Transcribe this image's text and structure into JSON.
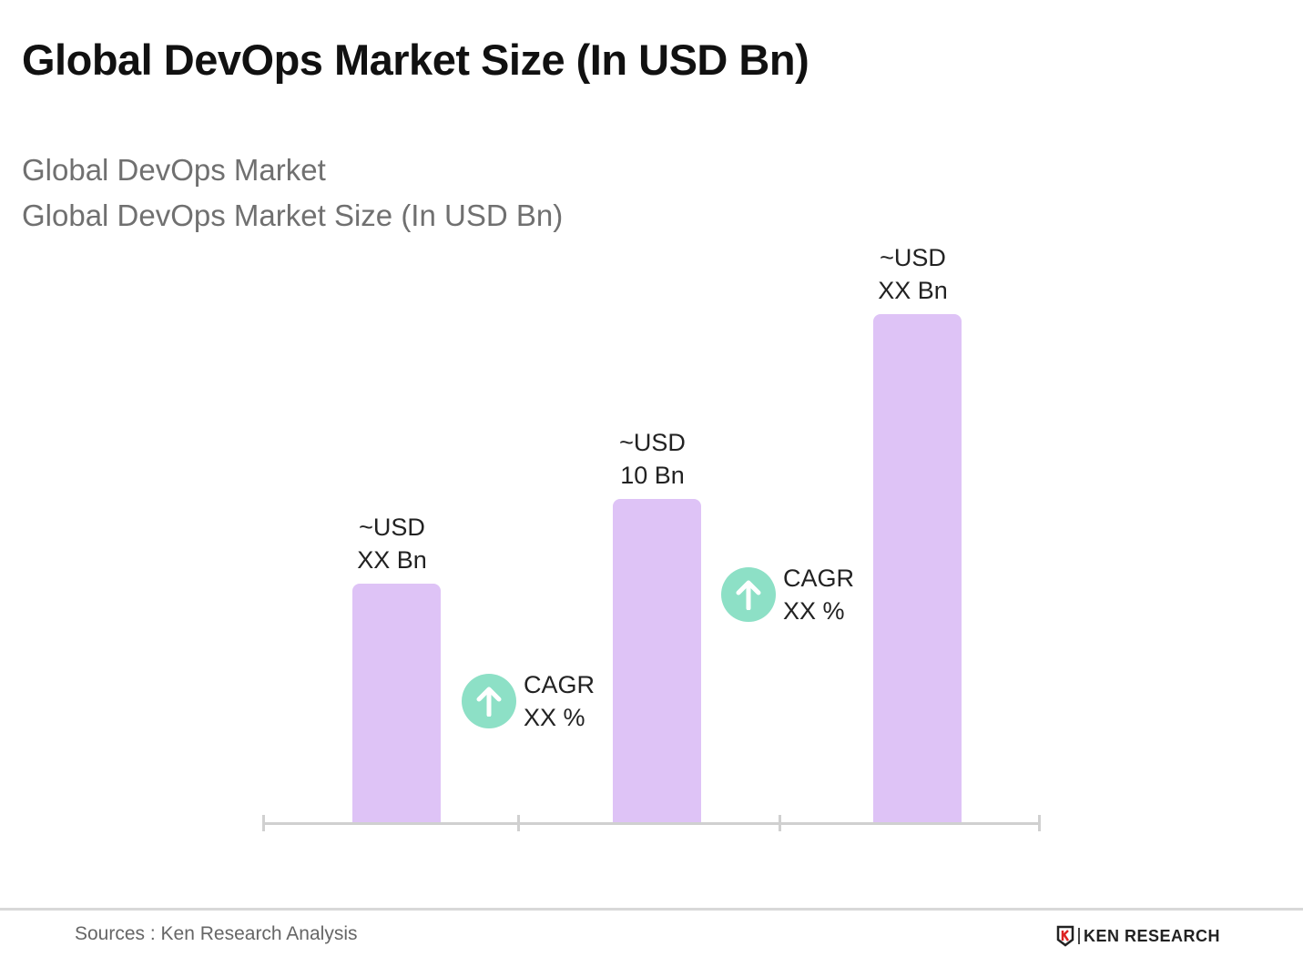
{
  "title": "Global DevOps Market Size (In USD Bn)",
  "subtitle_lines": [
    "Global DevOps Market",
    "Global DevOps Market Size (In USD Bn)"
  ],
  "chart_data": {
    "type": "bar",
    "title": "Global DevOps Market Size (In USD Bn)",
    "categories": [
      "",
      "",
      ""
    ],
    "values": [
      7.4,
      10,
      15.7
    ],
    "data_labels": [
      {
        "line1": "~USD",
        "line2": "XX Bn"
      },
      {
        "line1": "~USD",
        "line2": "10 Bn"
      },
      {
        "line1": "~USD",
        "line2": "XX Bn"
      }
    ],
    "annotations": [
      {
        "line1": "CAGR",
        "line2": "XX %",
        "icon": "arrow-up-circle-icon"
      },
      {
        "line1": "CAGR",
        "line2": "XX %",
        "icon": "arrow-up-circle-icon"
      }
    ],
    "xlabel": "",
    "ylabel": "",
    "ylim": [
      0,
      16
    ],
    "grid": false,
    "bar_color": "#dec3f6",
    "cagr_color": "#8de0c6"
  },
  "footer": {
    "source": "Sources : Ken Research Analysis",
    "logo_text": "KEN RESEARCH"
  }
}
